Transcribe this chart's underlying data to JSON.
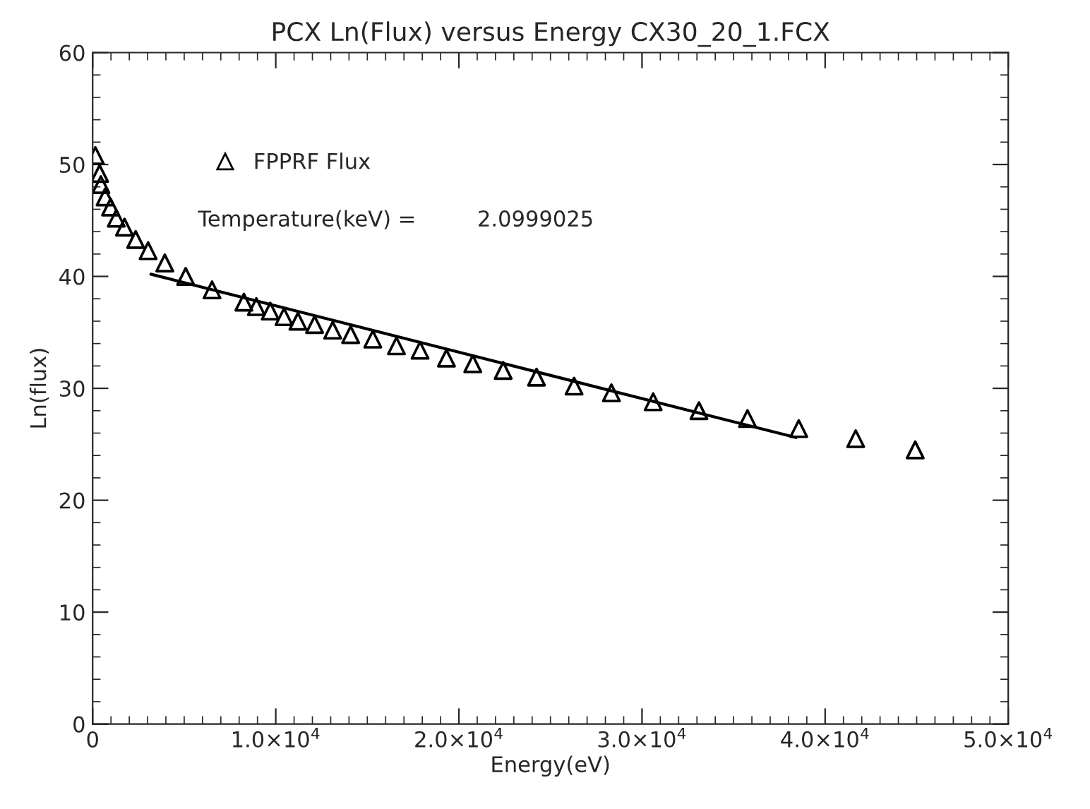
{
  "chart_data": {
    "type": "scatter",
    "title": "PCX Ln(Flux) versus Energy CX30_20_1.FCX",
    "xlabel": "Energy(eV)",
    "ylabel": "Ln(flux)",
    "x": [
      150,
      380,
      450,
      680,
      980,
      1290,
      1740,
      2350,
      3030,
      3940,
      5080,
      6520,
      8260,
      8940,
      9700,
      10450,
      11210,
      12120,
      13110,
      14090,
      15300,
      16590,
      17880,
      19320,
      20760,
      22420,
      24240,
      26290,
      28330,
      30610,
      33110,
      35760,
      38560,
      41670,
      44920
    ],
    "series": [
      {
        "name": "FPPRF Flux",
        "marker": "triangle",
        "color": "#000000",
        "values": [
          50.8,
          49.2,
          48.2,
          47.1,
          46.2,
          45.2,
          44.4,
          43.3,
          42.3,
          41.2,
          40.0,
          38.8,
          37.7,
          37.3,
          36.9,
          36.4,
          36.0,
          35.7,
          35.2,
          34.8,
          34.4,
          33.8,
          33.4,
          32.7,
          32.2,
          31.6,
          31.0,
          30.2,
          29.6,
          28.8,
          28.0,
          27.3,
          26.4,
          25.5,
          24.5
        ]
      },
      {
        "type": "line",
        "color": "#000000",
        "line_style": "solid",
        "x": [
          3180,
          38410
        ],
        "values": [
          40.2,
          25.6
        ]
      }
    ],
    "annotations": [
      "Temperature(keV) =",
      "2.0999025"
    ],
    "xlim": [
      0,
      50000
    ],
    "xticks": [
      0,
      {
        "value": 10000,
        "label": "1.0×10$^{4}$"
      },
      {
        "value": 20000,
        "label": "2.0×10$^{4}$"
      },
      {
        "value": 30000,
        "label": "3.0×10$^{4}$"
      },
      {
        "value": 40000,
        "label": "4.0×10$^{4}$"
      },
      {
        "value": 50000,
        "label": "5.0×10$^{4}$"
      }
    ],
    "ylim": [
      0,
      60
    ],
    "yticks": [
      0,
      10,
      20,
      30,
      40,
      50,
      60
    ],
    "legend": "top left"
  }
}
